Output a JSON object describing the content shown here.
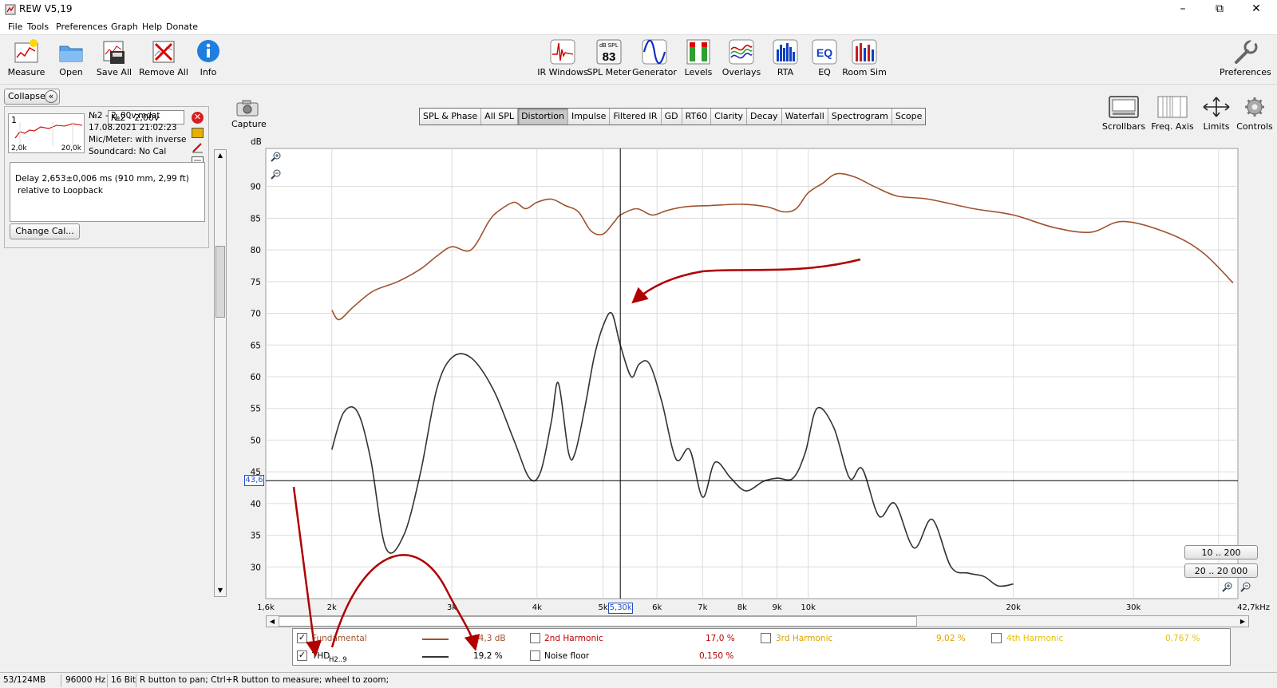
{
  "window": {
    "title": "REW V5,19"
  },
  "menu": [
    "File",
    "Tools",
    "Preferences",
    "Graph",
    "Help",
    "Donate"
  ],
  "toolbar": {
    "left": [
      {
        "icon": "measure-icon",
        "label": "Measure"
      },
      {
        "icon": "open-folder-icon",
        "label": "Open"
      },
      {
        "icon": "save-all-icon",
        "label": "Save All"
      },
      {
        "icon": "remove-all-icon",
        "label": "Remove All"
      },
      {
        "icon": "info-icon",
        "label": "Info"
      }
    ],
    "center": [
      {
        "icon": "ir-windows-icon",
        "label": "IR Windows"
      },
      {
        "icon": "spl-meter-icon",
        "label": "SPL Meter",
        "meter_top": "dB SPL",
        "meter_value": "83"
      },
      {
        "icon": "generator-icon",
        "label": "Generator"
      },
      {
        "icon": "levels-icon",
        "label": "Levels"
      },
      {
        "icon": "overlays-icon",
        "label": "Overlays"
      },
      {
        "icon": "rta-icon",
        "label": "RTA"
      },
      {
        "icon": "eq-icon",
        "label": "EQ",
        "badge": "EQ"
      },
      {
        "icon": "room-sim-icon",
        "label": "Room Sim"
      }
    ],
    "preferences": "Preferences"
  },
  "measurement_panel": {
    "collapse_label": "Collapse",
    "name_field": "№2 - 2,00v",
    "index": "1",
    "thumb_left": "2,0k",
    "thumb_right": "20,0k",
    "file": "№2 - 2_00v.mdat",
    "date": "17.08.2021 21:02:23",
    "mic": "Mic/Meter: with inverse C",
    "soundcard": "Soundcard: No Cal",
    "delay_line1": "Delay 2,653±0,006 ms (910 mm, 2,99 ft)",
    "delay_line2": "relative to Loopback",
    "change_cal": "Change Cal..."
  },
  "capture_label": "Capture",
  "tabs": [
    "SPL & Phase",
    "All SPL",
    "Distortion",
    "Impulse",
    "Filtered IR",
    "GD",
    "RT60",
    "Clarity",
    "Decay",
    "Waterfall",
    "Spectrogram",
    "Scope"
  ],
  "active_tab": "Distortion",
  "right_tools": [
    {
      "icon": "scrollbars-icon",
      "label": "Scrollbars"
    },
    {
      "icon": "freq-axis-icon",
      "label": "Freq. Axis"
    },
    {
      "icon": "limits-icon",
      "label": "Limits"
    },
    {
      "icon": "controls-gear-icon",
      "label": "Controls"
    }
  ],
  "graph": {
    "y_unit": "dB",
    "cursor_y_label": "43,6",
    "cursor_x_label": "5,30k",
    "range_btn_1": "10 .. 200",
    "range_btn_2": "20 .. 20 000"
  },
  "chart_data": {
    "type": "line",
    "xscale": "log",
    "xlim": [
      1600,
      42700
    ],
    "ylim": [
      25,
      96
    ],
    "ylabel": "dB",
    "x_ticks": [
      "1,6k",
      "2k",
      "3k",
      "4k",
      "5k",
      "6k",
      "7k",
      "8k",
      "9k",
      "10k",
      "20k",
      "30k",
      "42,7kHz"
    ],
    "x_tick_values": [
      1600,
      2000,
      3000,
      4000,
      5000,
      6000,
      7000,
      8000,
      9000,
      10000,
      20000,
      30000,
      42700
    ],
    "y_ticks": [
      30,
      35,
      40,
      45,
      50,
      55,
      60,
      65,
      70,
      75,
      80,
      85,
      90
    ],
    "cursor": {
      "x": 5300,
      "y": 43.6
    },
    "series": [
      {
        "name": "Fundamental",
        "color": "#a0522d",
        "x": [
          2000,
          2050,
          2150,
          2300,
          2500,
          2700,
          2850,
          3000,
          3200,
          3400,
          3500,
          3700,
          3850,
          4000,
          4200,
          4400,
          4600,
          4800,
          5000,
          5200,
          5300,
          5600,
          5900,
          6200,
          6600,
          7200,
          8000,
          8700,
          9200,
          9600,
          10000,
          10500,
          11000,
          11700,
          12500,
          13500,
          15000,
          17500,
          20000,
          23000,
          26000,
          29000,
          34000,
          38000,
          42000
        ],
        "y": [
          70.5,
          69,
          71,
          73.5,
          75,
          77,
          79,
          80.5,
          80,
          84.5,
          86,
          87.5,
          86.5,
          87.5,
          88,
          87,
          86,
          83,
          82.5,
          84.5,
          85.5,
          86.5,
          85.5,
          86.2,
          86.8,
          87,
          87.2,
          86.8,
          86,
          86.5,
          89,
          90.5,
          92,
          91.5,
          90,
          88.5,
          88,
          86.5,
          85.5,
          83.5,
          82.8,
          84.5,
          82.5,
          79.5,
          74.8
        ]
      },
      {
        "name": "THD",
        "color": "#333333",
        "x": [
          2000,
          2080,
          2180,
          2280,
          2400,
          2550,
          2700,
          2850,
          3000,
          3200,
          3450,
          3700,
          3900,
          4050,
          4200,
          4300,
          4450,
          4550,
          4700,
          4850,
          5000,
          5150,
          5300,
          5500,
          5650,
          5850,
          6100,
          6400,
          6700,
          7000,
          7300,
          7700,
          8100,
          8600,
          9000,
          9500,
          9900,
          10300,
          10900,
          11500,
          12000,
          12700,
          13400,
          14300,
          15200,
          16200,
          17200,
          18100,
          19000,
          20000
        ],
        "y": [
          48.5,
          54.3,
          54.5,
          47,
          33,
          35,
          45,
          58,
          63,
          63,
          58,
          50,
          44,
          45,
          53,
          59,
          48,
          48,
          55,
          63,
          68,
          70,
          65,
          60,
          62,
          62,
          56,
          47,
          48.5,
          41,
          46.5,
          44,
          42,
          43.5,
          44,
          44,
          48,
          55,
          52,
          44,
          45.5,
          38,
          40,
          33,
          37.5,
          30,
          29,
          28.5,
          27,
          27.3
        ]
      }
    ],
    "legend": [
      {
        "name": "Fundamental",
        "checked": true,
        "value": "84,3 dB",
        "color": "#a0522d"
      },
      {
        "name": "THD",
        "sub": "H2..9",
        "checked": true,
        "value": "19,2 %",
        "color": "#333333"
      },
      {
        "name": "2nd Harmonic",
        "checked": false,
        "value": "17,0 %",
        "color": "#c00000"
      },
      {
        "name": "Noise floor",
        "checked": false,
        "value": "0,150 %",
        "color": "#b00000"
      },
      {
        "name": "3rd Harmonic",
        "checked": false,
        "value": "9,02 %",
        "color": "#d9a300"
      },
      {
        "name": "4th Harmonic",
        "checked": false,
        "value": "0,767 %",
        "color": "#e6c200"
      }
    ]
  },
  "status": {
    "memory": "53/124MB",
    "rate": "96000 Hz",
    "bits": "16 Bit",
    "hint": "R button to pan; Ctrl+R button to measure; wheel to zoom;"
  },
  "colors": {
    "annotation": "#b00000",
    "grid": "#dcdcdc",
    "axis": "#000000"
  }
}
